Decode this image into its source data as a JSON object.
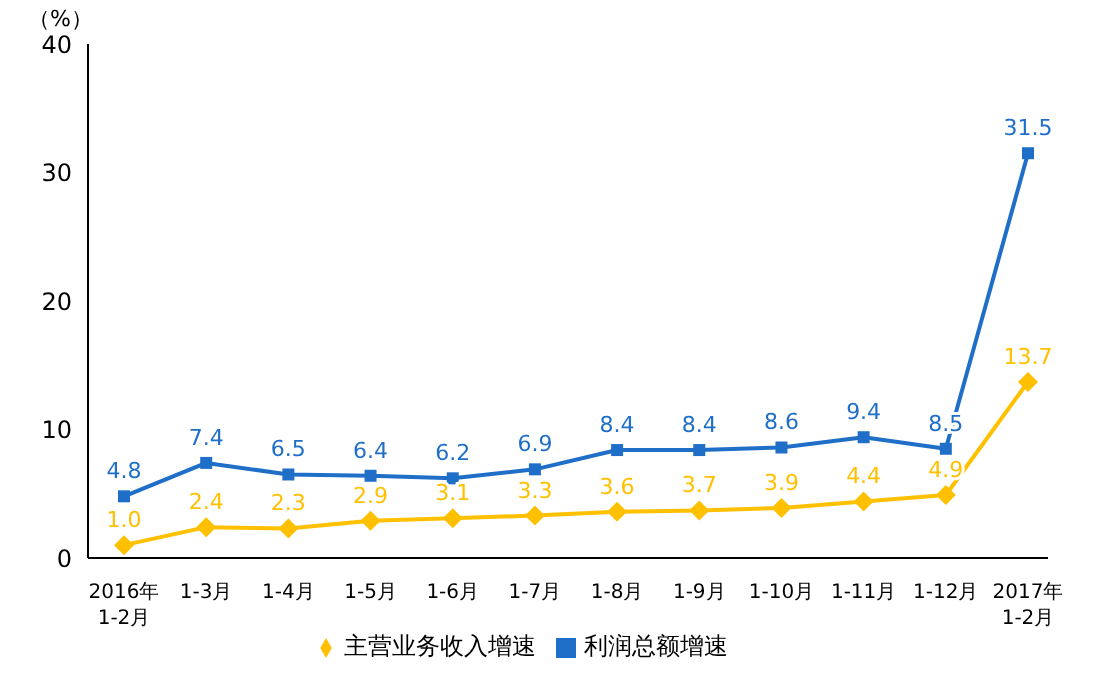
{
  "chart_data": {
    "type": "line",
    "ylabel": "（%）",
    "categories": [
      "2016年\n1-2月",
      "1-3月",
      "1-4月",
      "1-5月",
      "1-6月",
      "1-7月",
      "1-8月",
      "1-9月",
      "1-10月",
      "1-11月",
      "1-12月",
      "2017年\n1-2月"
    ],
    "series": [
      {
        "name": "主营业务收入增速",
        "color": "#ffc000",
        "marker": "diamond",
        "values": [
          1.0,
          2.4,
          2.3,
          2.9,
          3.1,
          3.3,
          3.6,
          3.7,
          3.9,
          4.4,
          4.9,
          13.7
        ],
        "value_labels": [
          "1.0",
          "2.4",
          "2.3",
          "2.9",
          "3.1",
          "3.3",
          "3.6",
          "3.7",
          "3.9",
          "4.4",
          "4.9",
          "13.7"
        ]
      },
      {
        "name": "利润总额增速",
        "color": "#1f6fc8",
        "marker": "square",
        "values": [
          4.8,
          7.4,
          6.5,
          6.4,
          6.2,
          6.9,
          8.4,
          8.4,
          8.6,
          9.4,
          8.5,
          31.5
        ],
        "value_labels": [
          "4.8",
          "7.4",
          "6.5",
          "6.4",
          "6.2",
          "6.9",
          "8.4",
          "8.4",
          "8.6",
          "9.4",
          "8.5",
          "31.5"
        ]
      }
    ],
    "ylim": [
      0,
      40
    ],
    "yticks": [
      0,
      10,
      20,
      30,
      40
    ],
    "grid": false,
    "legend": "bottom",
    "line_style": "solid"
  }
}
